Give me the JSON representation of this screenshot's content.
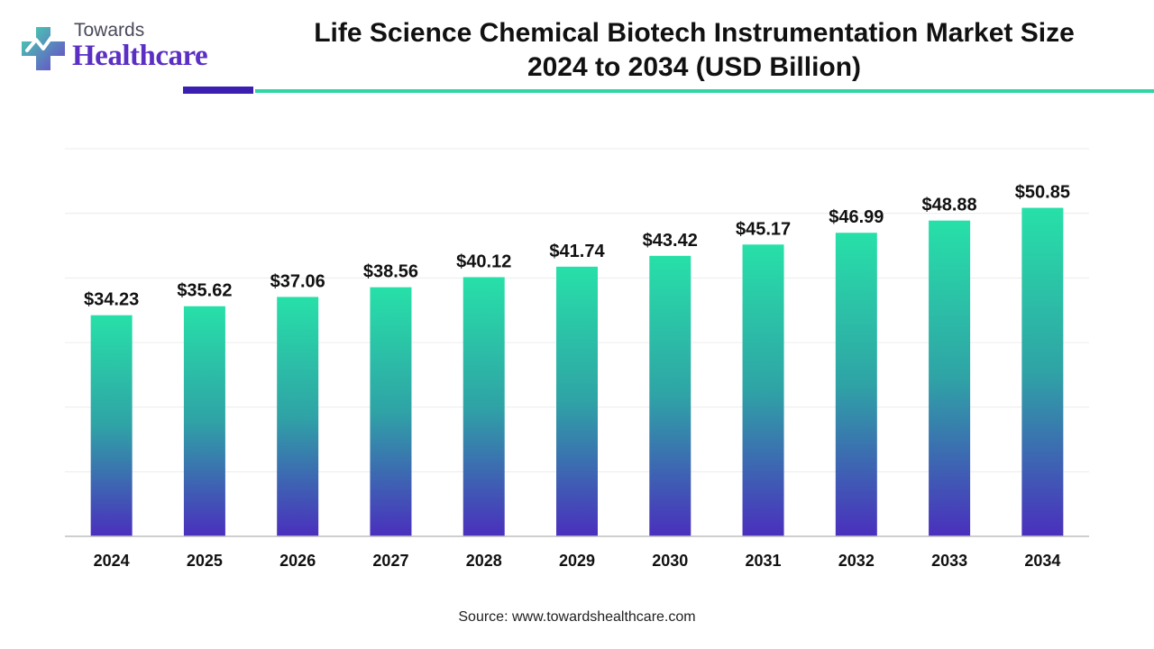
{
  "brand": {
    "top_text": "Towards",
    "bottom_text": "Healthcare",
    "colors": {
      "primary": "#5b2fc4",
      "accent": "#2fd5a5"
    }
  },
  "title_line1": "Life Science Chemical Biotech Instrumentation Market Size",
  "title_line2": "2024 to 2034 (USD Billion)",
  "source": "Source: www.towardshealthcare.com",
  "chart_data": {
    "type": "bar",
    "categories": [
      "2024",
      "2025",
      "2026",
      "2027",
      "2028",
      "2029",
      "2030",
      "2031",
      "2032",
      "2033",
      "2034"
    ],
    "values": [
      34.23,
      35.62,
      37.06,
      38.56,
      40.12,
      41.74,
      43.42,
      45.17,
      46.99,
      48.88,
      50.85
    ],
    "value_labels": [
      "$34.23",
      "$35.62",
      "$37.06",
      "$38.56",
      "$40.12",
      "$41.74",
      "$43.42",
      "$45.17",
      "$46.99",
      "$48.88",
      "$50.85"
    ],
    "ylim": [
      0,
      60
    ],
    "grid": true,
    "legend": "none",
    "bar_gradient": {
      "top": "#27e0a8",
      "middle": "#2fa3a6",
      "bottom": "#4a2fbd"
    }
  }
}
